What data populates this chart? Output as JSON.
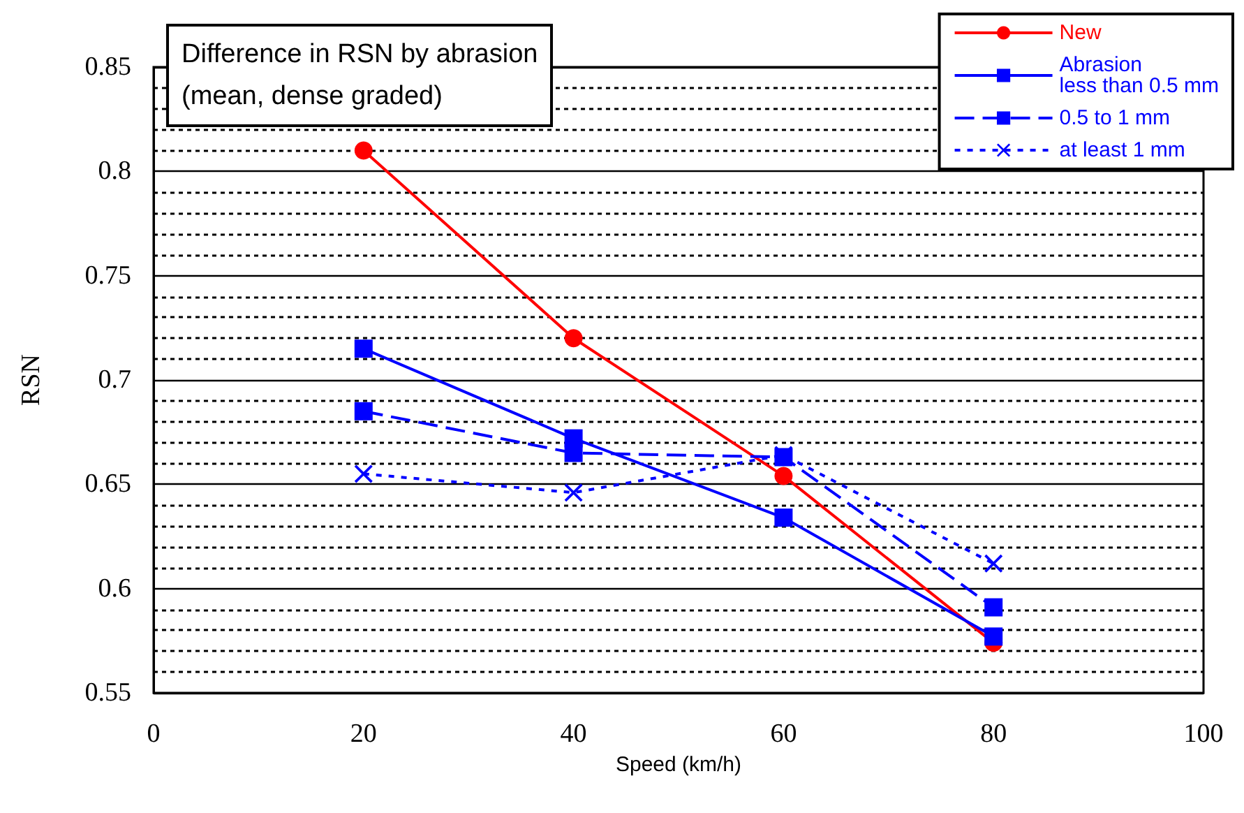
{
  "chart_data": {
    "type": "line",
    "title": "Difference in RSN by abrasion\n(mean, dense graded)",
    "xlabel": "Speed (km/h)",
    "ylabel": "RSN",
    "x": [
      20,
      40,
      60,
      80
    ],
    "series": [
      {
        "name": "New",
        "color": "#ff0000",
        "marker": "circle",
        "line_style": "solid",
        "values": [
          0.81,
          0.72,
          0.654,
          0.574
        ]
      },
      {
        "name": "Abrasion\nless than 0.5 mm",
        "color": "#0000ff",
        "marker": "square",
        "line_style": "solid",
        "values": [
          0.715,
          0.672,
          0.634,
          0.577
        ]
      },
      {
        "name": "0.5 to 1 mm",
        "color": "#0000ff",
        "marker": "square",
        "line_style": "dashed",
        "values": [
          0.685,
          0.665,
          0.663,
          0.591
        ]
      },
      {
        "name": "at least 1 mm",
        "color": "#0000ff",
        "marker": "cross",
        "line_style": "dotted",
        "values": [
          0.655,
          0.646,
          0.664,
          0.612
        ]
      }
    ],
    "xlim": [
      0,
      100
    ],
    "xticks": [
      0,
      20,
      40,
      60,
      80,
      100
    ],
    "ylim": [
      0.55,
      0.85
    ],
    "yticks": [
      0.55,
      0.6,
      0.65,
      0.7,
      0.75,
      0.8,
      0.85
    ],
    "grid": "y",
    "legend": "top right"
  }
}
